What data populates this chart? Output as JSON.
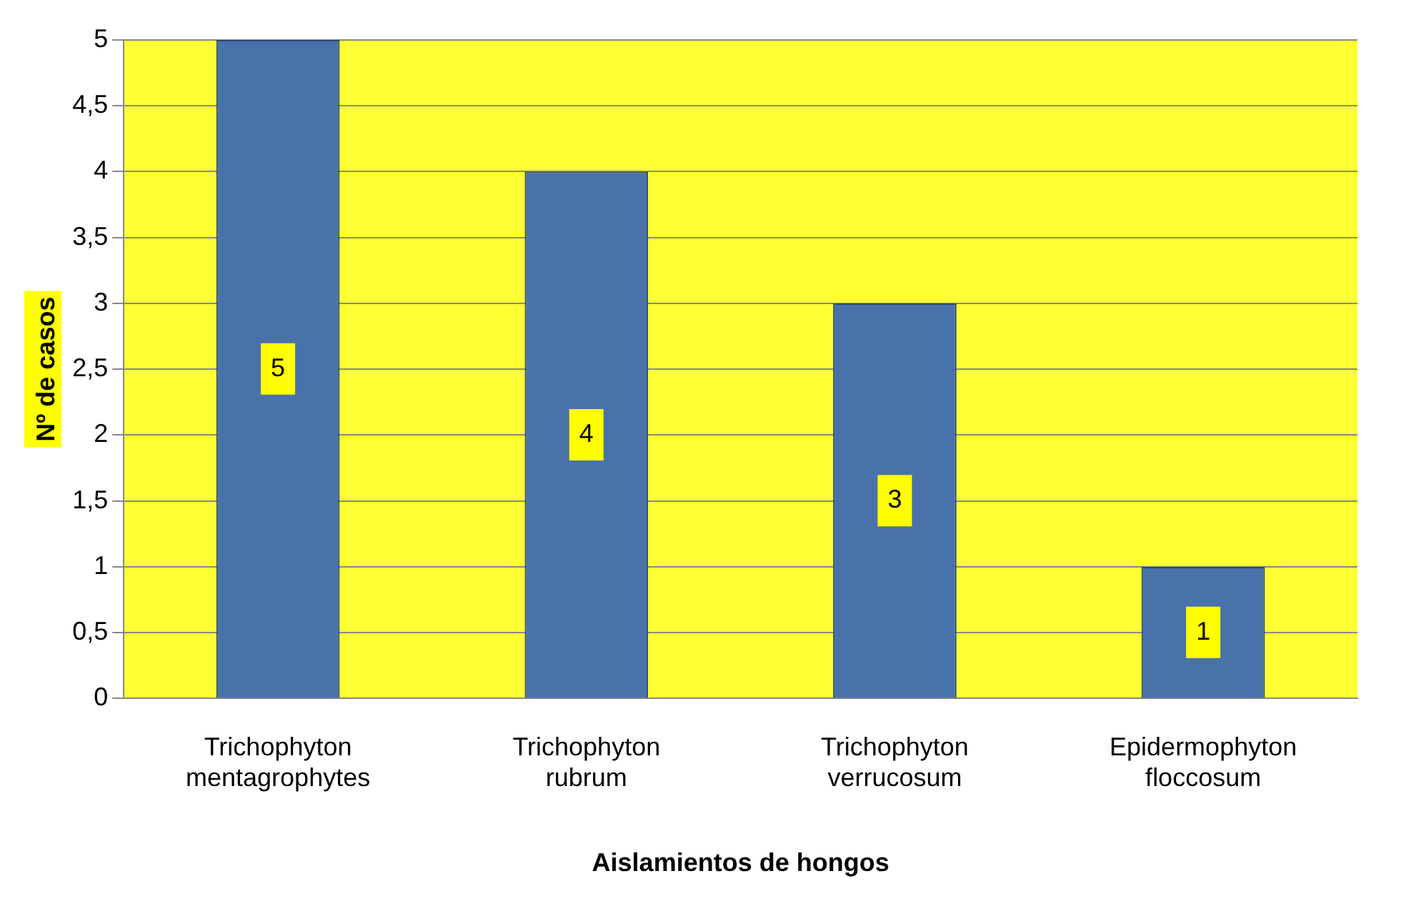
{
  "chart_data": {
    "type": "bar",
    "xlabel": "Aislamientos de hongos",
    "ylabel": "Nº de casos",
    "categories": [
      "Trichophyton mentagrophytes",
      "Trichophyton rubrum",
      "Trichophyton verrucosum",
      "Epidermophyton floccosum"
    ],
    "values": [
      5,
      4,
      3,
      1
    ],
    "color": "#4a72aa",
    "ylim": [
      0,
      5
    ],
    "yticks": [
      0,
      {
        "value": 0.5,
        "label": "0,5"
      },
      1,
      {
        "value": 1.5,
        "label": "1,5"
      },
      2,
      {
        "value": 2.5,
        "label": "2,5"
      },
      3,
      {
        "value": 3.5,
        "label": "3,5"
      },
      4,
      {
        "value": 4.5,
        "label": "4,5"
      },
      5
    ],
    "grid": "y",
    "data_labels": true,
    "legend": false
  }
}
